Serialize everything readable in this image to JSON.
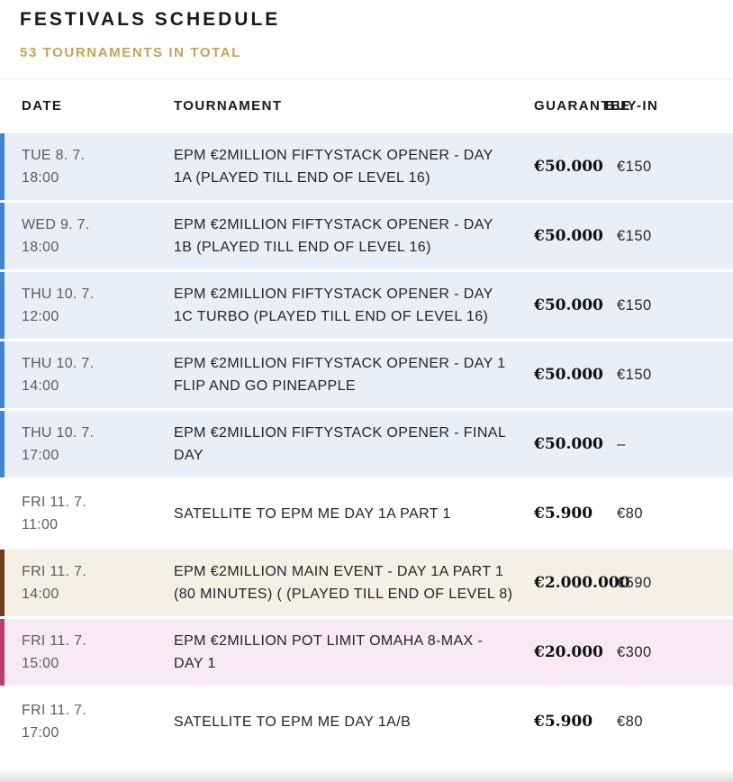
{
  "page": {
    "title": "FESTIVALS SCHEDULE",
    "subtitle": "53 TOURNAMENTS IN TOTAL"
  },
  "table": {
    "headers": {
      "date": "DATE",
      "tournament": "TOURNAMENT",
      "guarantee": "GUARANTEE",
      "buyin": "BUY-IN"
    },
    "rows": [
      {
        "date": "TUE 8. 7.",
        "time": "18:00",
        "tournament": "EPM €2MILLION FIFTYSTACK OPENER - DAY 1A (PLAYED TILL END OF LEVEL 16)",
        "guarantee": "€50.000",
        "buyin": "€150",
        "variant": "blue"
      },
      {
        "date": "WED 9. 7.",
        "time": "18:00",
        "tournament": "EPM €2MILLION FIFTYSTACK OPENER - DAY 1B (PLAYED TILL END OF LEVEL 16)",
        "guarantee": "€50.000",
        "buyin": "€150",
        "variant": "blue"
      },
      {
        "date": "THU 10. 7.",
        "time": "12:00",
        "tournament": "EPM €2MILLION FIFTYSTACK OPENER - DAY 1C TURBO (PLAYED TILL END OF LEVEL 16)",
        "guarantee": "€50.000",
        "buyin": "€150",
        "variant": "blue"
      },
      {
        "date": "THU 10. 7.",
        "time": "14:00",
        "tournament": "EPM €2MILLION FIFTYSTACK OPENER - DAY 1 FLIP AND GO PINEAPPLE",
        "guarantee": "€50.000",
        "buyin": "€150",
        "variant": "blue"
      },
      {
        "date": "THU 10. 7.",
        "time": "17:00",
        "tournament": "EPM €2MILLION FIFTYSTACK OPENER - FINAL DAY",
        "guarantee": "€50.000",
        "buyin": "–",
        "variant": "blue"
      },
      {
        "date": "FRI 11. 7.",
        "time": "11:00",
        "tournament": "SATELLITE TO EPM ME DAY 1A PART 1",
        "guarantee": "€5.900",
        "buyin": "€80",
        "variant": "white"
      },
      {
        "date": "FRI 11. 7.",
        "time": "14:00",
        "tournament": "EPM €2MILLION MAIN EVENT - DAY 1A PART 1 (80 MINUTES) ( (PLAYED TILL END OF LEVEL 8)",
        "guarantee": "€2.000.000",
        "buyin": "€590",
        "variant": "cream"
      },
      {
        "date": "FRI 11. 7.",
        "time": "15:00",
        "tournament": "EPM €2MILLION POT LIMIT OMAHA 8-MAX - DAY 1",
        "guarantee": "€20.000",
        "buyin": "€300",
        "variant": "pink"
      },
      {
        "date": "FRI 11. 7.",
        "time": "17:00",
        "tournament": "SATELLITE TO EPM ME DAY 1A/B",
        "guarantee": "€5.900",
        "buyin": "€80",
        "variant": "white"
      }
    ]
  },
  "colors": {
    "accent_gold": "#c5a257",
    "row_blue_bg": "#e9eef8",
    "row_blue_border": "#4286d3",
    "row_cream_bg": "#f4f0e6",
    "row_cream_border": "#6e3b1c",
    "row_pink_bg": "#f9e9f2",
    "row_pink_border": "#bc3d68"
  }
}
